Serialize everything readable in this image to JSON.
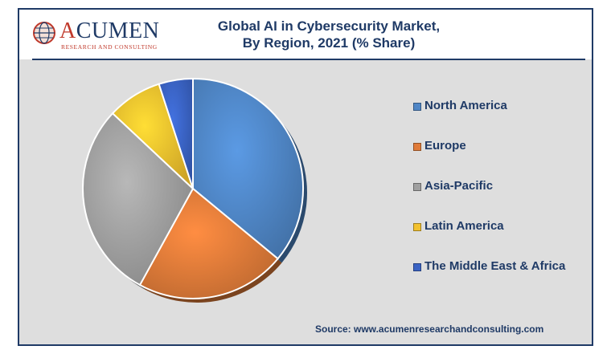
{
  "logo": {
    "name_first": "A",
    "name_rest": "CUMEN",
    "tagline": "RESEARCH AND CONSULTING"
  },
  "title_line1": "Global AI in Cybersecurity Market,",
  "title_line2": "By Region, 2021 (% Share)",
  "source": "Source: www.acumenresearchandconsulting.com",
  "colors": {
    "frame": "#1f3a66",
    "background": "#dedede",
    "text": "#1f3a66"
  },
  "chart_data": {
    "type": "pie",
    "start_angle_deg": 0,
    "direction": "clockwise",
    "slices": [
      {
        "label": "North America",
        "value": 36,
        "color": "#4f86c6"
      },
      {
        "label": "Europe",
        "value": 22,
        "color": "#e07b39"
      },
      {
        "label": "Asia-Pacific",
        "value": 29,
        "color": "#a0a0a0"
      },
      {
        "label": "Latin America",
        "value": 8,
        "color": "#f2c12e"
      },
      {
        "label": "The Middle East & Africa",
        "value": 5,
        "color": "#3a63c4"
      }
    ],
    "legend_position": "right"
  }
}
